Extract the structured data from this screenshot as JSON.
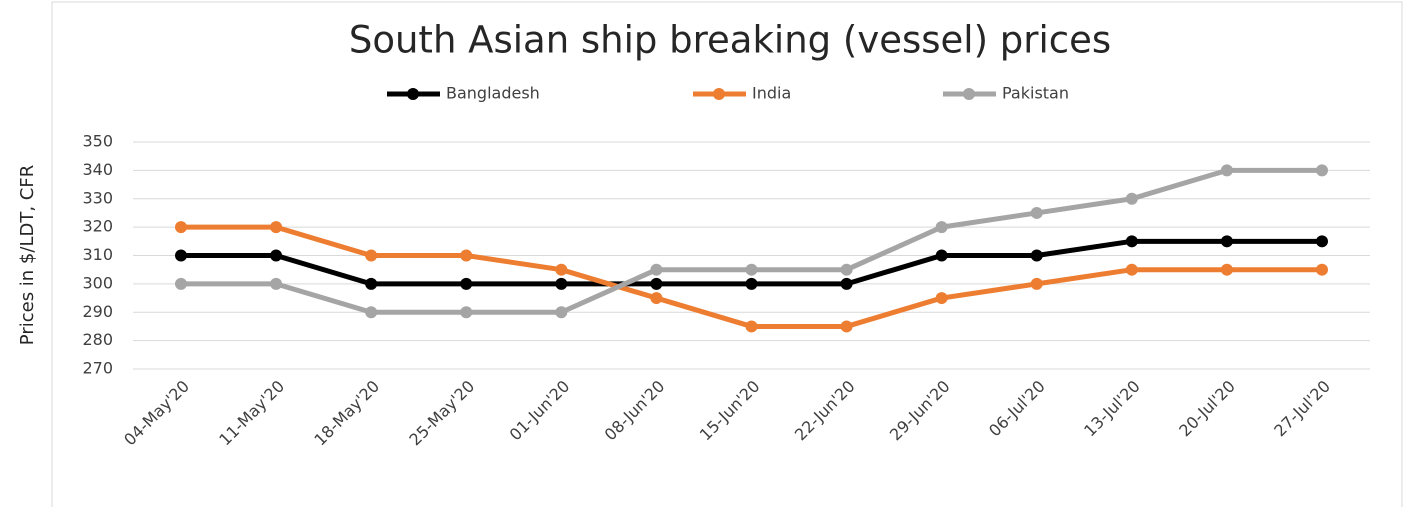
{
  "chart_data": {
    "type": "line",
    "title": "South Asian ship breaking (vessel) prices",
    "y_label": "Prices in $/LDT, CFR",
    "categories": [
      "04-May'20",
      "11-May'20",
      "18-May'20",
      "25-May'20",
      "01-Jun'20",
      "08-Jun'20",
      "15-Jun'20",
      "22-Jun'20",
      "29-Jun'20",
      "06-Jul'20",
      "13-Jul'20",
      "20-Jul'20",
      "27-Jul'20"
    ],
    "series": [
      {
        "name": "Bangladesh",
        "color": "#000000",
        "values": [
          310,
          310,
          300,
          300,
          300,
          300,
          300,
          300,
          310,
          310,
          315,
          315,
          315
        ]
      },
      {
        "name": "India",
        "color": "#ed7d31",
        "values": [
          320,
          320,
          310,
          310,
          305,
          295,
          285,
          285,
          295,
          300,
          305,
          305,
          305
        ]
      },
      {
        "name": "Pakistan",
        "color": "#a5a5a5",
        "values": [
          300,
          300,
          290,
          290,
          290,
          305,
          305,
          305,
          320,
          325,
          330,
          340,
          340
        ]
      }
    ],
    "ylim": [
      270,
      350
    ],
    "yticks": [
      270,
      280,
      290,
      300,
      310,
      320,
      330,
      340,
      350
    ],
    "grid": true,
    "legend": "top"
  }
}
